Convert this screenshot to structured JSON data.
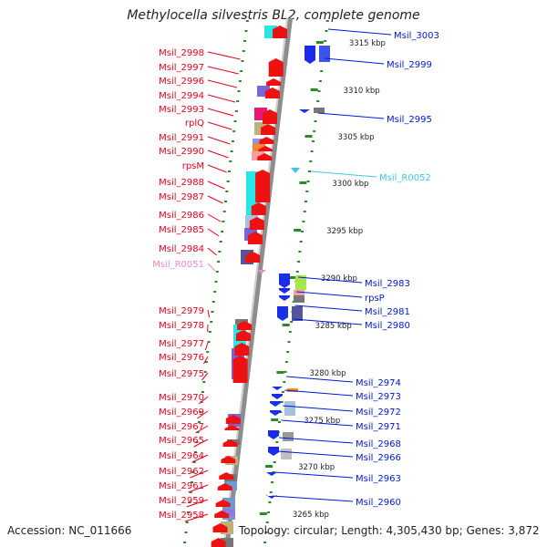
{
  "title": "Methylocella silvestris BL2, complete genome",
  "accession": "Accession: NC_011666",
  "summary": "Topology: circular; Length: 4,305,430 bp; Genes: 3,872",
  "colors": {
    "left_label": "#e8001c",
    "right_label": "#0018d8",
    "rna_cyan": "#3fc6e6",
    "rna_pink": "#ee88c8",
    "ruler": "#999999",
    "ticks": "#2a8a2a"
  },
  "scale_labels": [
    "3315 kbp",
    "3310 kbp",
    "3305 kbp",
    "3300 kbp",
    "3295 kbp",
    "3290 kbp",
    "3285 kbp",
    "3280 kbp",
    "3275 kbp",
    "3270 kbp",
    "3265 kbp"
  ],
  "left_labels": [
    "Msil_2998",
    "Msil_2997",
    "Msil_2996",
    "Msil_2994",
    "Msil_2993",
    "rplQ",
    "Msil_2991",
    "Msil_2990",
    "rpsM",
    "Msil_2988",
    "Msil_2987",
    "Msil_2986",
    "Msil_2985",
    "Msil_2984",
    "Msil_R0051",
    "Msil_2979",
    "Msil_2978",
    "Msil_2977",
    "Msil_2976",
    "Msil_2975",
    "Msil_2970",
    "Msil_2969",
    "Msil_2967",
    "Msil_2965",
    "Msil_2964",
    "Msil_2962",
    "Msil_2961",
    "Msil_2959",
    "Msil_2958"
  ],
  "right_labels": [
    "Msil_3003",
    "Msil_2999",
    "Msil_2995",
    "Msil_R0052",
    "Msil_2983",
    "rpsP",
    "Msil_2981",
    "Msil_2980",
    "Msil_2974",
    "Msil_2973",
    "Msil_2972",
    "Msil_2971",
    "Msil_2968",
    "Msil_2966",
    "Msil_2963",
    "Msil_2960"
  ]
}
